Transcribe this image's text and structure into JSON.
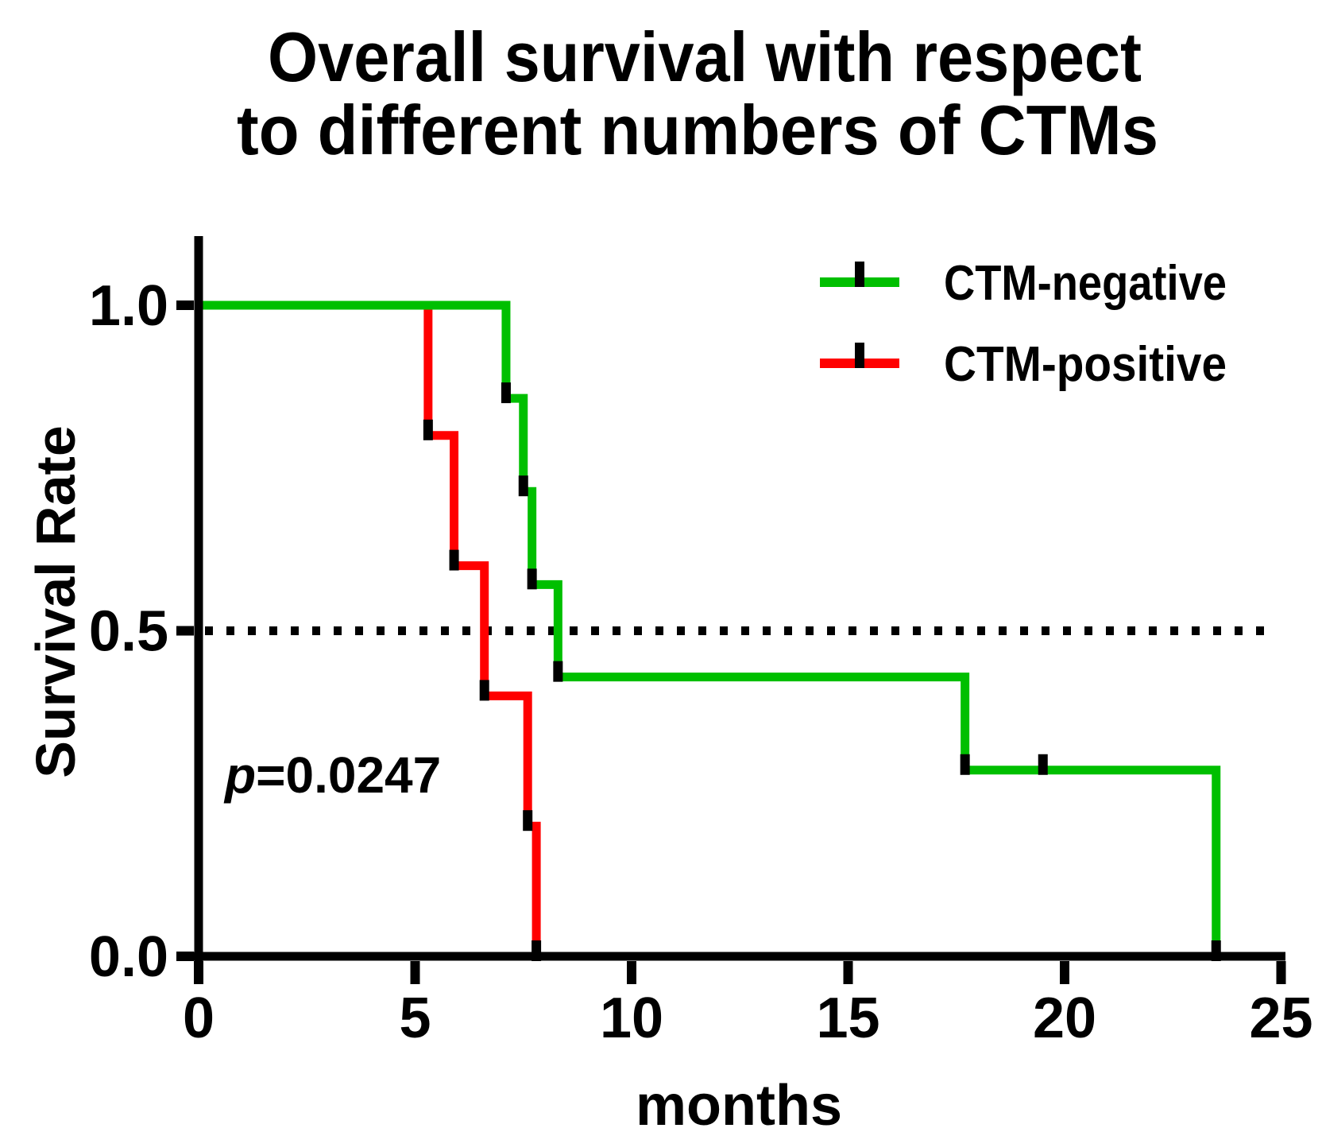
{
  "figure": {
    "title_line1": "Overall survival with respect",
    "title_line2": "to different numbers of CTMs"
  },
  "axes": {
    "x": {
      "label": "months",
      "ticks": [
        "0",
        "5",
        "10",
        "15",
        "20",
        "25"
      ],
      "tick_values": [
        0,
        5,
        10,
        15,
        20,
        25
      ],
      "range": [
        0,
        25
      ]
    },
    "y": {
      "label": "Survival Rate",
      "ticks": [
        "1.0",
        "0.5",
        "0.0"
      ],
      "tick_values": [
        1.0,
        0.5,
        0.0
      ],
      "range": [
        0,
        1
      ]
    }
  },
  "annotation": {
    "p_symbol": "p",
    "p_rest": "=0.0247"
  },
  "legend": {
    "entries": [
      {
        "label": "CTM-negative",
        "color": "#00bf00"
      },
      {
        "label": "CTM-positive",
        "color": "#ff0000"
      }
    ]
  },
  "colors": {
    "ctm_negative": "#00bf00",
    "ctm_positive": "#ff0000",
    "axis": "#000000",
    "event_marker": "#000000"
  },
  "chart_data": {
    "type": "line",
    "subtype": "kaplan_meier_step",
    "title": "Overall survival with respect to different numbers of CTMs",
    "xlabel": "months",
    "ylabel": "Survival Rate",
    "xlim": [
      0,
      25
    ],
    "ylim": [
      0,
      1
    ],
    "x_ticks": [
      0,
      5,
      10,
      15,
      20,
      25
    ],
    "y_ticks": [
      1.0,
      0.5,
      0.0
    ],
    "grid": false,
    "reference_line_y": 0.5,
    "reference_line_style": "dotted",
    "p_value": "p=0.0247",
    "legend_position": "upper right",
    "series": [
      {
        "name": "CTM-negative",
        "color": "#00bf00",
        "steps": [
          [
            0,
            1.0
          ],
          [
            7.1,
            0.857
          ],
          [
            7.5,
            0.714
          ],
          [
            7.7,
            0.571
          ],
          [
            8.3,
            0.429
          ],
          [
            17.7,
            0.286
          ],
          [
            23.5,
            0.0
          ]
        ],
        "censored": [
          [
            19.5,
            0.286
          ]
        ]
      },
      {
        "name": "CTM-positive",
        "color": "#ff0000",
        "steps": [
          [
            0,
            1.0
          ],
          [
            5.3,
            0.8
          ],
          [
            5.9,
            0.6
          ],
          [
            6.6,
            0.4
          ],
          [
            7.6,
            0.2
          ],
          [
            7.8,
            0.0
          ]
        ],
        "censored": []
      }
    ]
  }
}
